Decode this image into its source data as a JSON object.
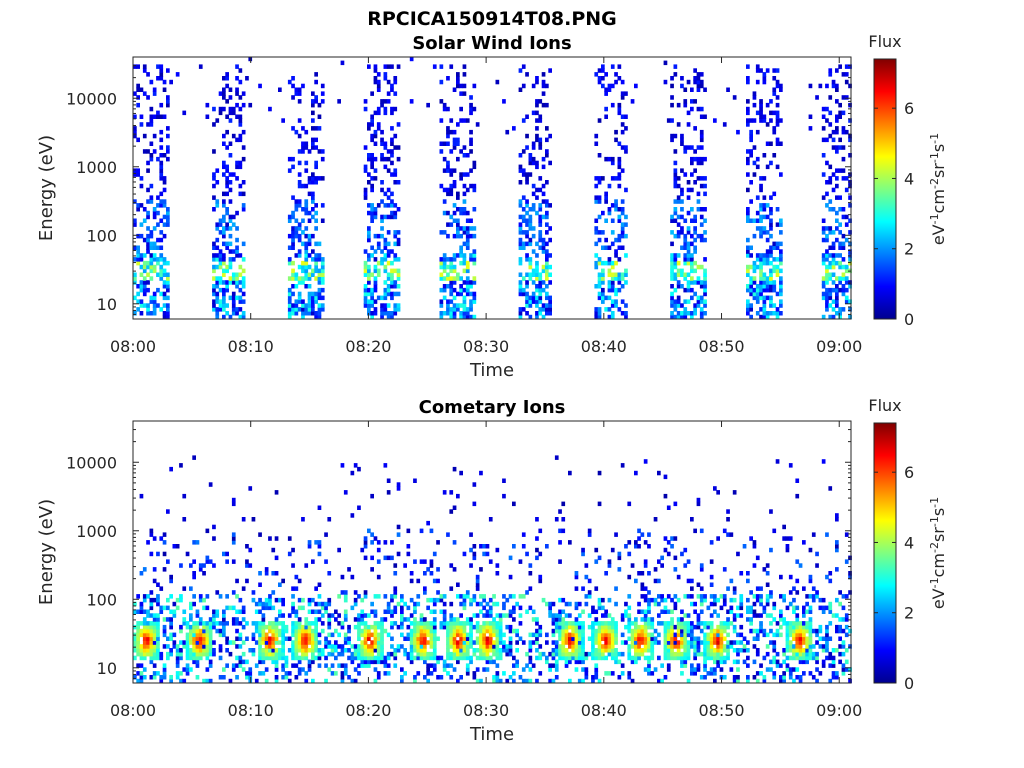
{
  "figure": {
    "title": "RPCICA150914T08.PNG"
  },
  "chart_data": [
    {
      "type": "heatmap",
      "title": "Solar Wind Ions",
      "xlabel": "Time",
      "ylabel": "Energy (eV)",
      "x_tick_labels": [
        "08:00",
        "08:10",
        "08:20",
        "08:30",
        "08:40",
        "08:50",
        "09:00"
      ],
      "xlim": [
        "08:00",
        "09:01"
      ],
      "y_scale": "log",
      "y_tick_values": [
        10,
        100,
        1000,
        10000
      ],
      "y_tick_labels": [
        "10",
        "100",
        "1000",
        "10000"
      ],
      "ylim": [
        6,
        40000
      ],
      "colorbar": {
        "label": "Flux",
        "unit_label": "eV-1cm-2sr-1s-1",
        "range": [
          0,
          7.4
        ],
        "tick_values": [
          0,
          2,
          4,
          6
        ],
        "tick_labels": [
          "0",
          "2",
          "4",
          "6"
        ],
        "colormap": "jet"
      },
      "bursts_minutes": [
        [
          0,
          3
        ],
        [
          6.5,
          9.5
        ],
        [
          13,
          16
        ],
        [
          19.5,
          22.5
        ],
        [
          26,
          29
        ],
        [
          32.5,
          35.5
        ],
        [
          39,
          42
        ],
        [
          45.5,
          48.5
        ],
        [
          52,
          55
        ],
        [
          58.5,
          61
        ]
      ],
      "peak_energy_ev": 30,
      "peak_flux": 4.5
    },
    {
      "type": "heatmap",
      "title": "Cometary Ions",
      "xlabel": "Time",
      "ylabel": "Energy (eV)",
      "x_tick_labels": [
        "08:00",
        "08:10",
        "08:20",
        "08:30",
        "08:40",
        "08:50",
        "09:00"
      ],
      "xlim": [
        "08:00",
        "09:01"
      ],
      "y_scale": "log",
      "y_tick_values": [
        10,
        100,
        1000,
        10000
      ],
      "y_tick_labels": [
        "10",
        "100",
        "1000",
        "10000"
      ],
      "ylim": [
        6,
        40000
      ],
      "colorbar": {
        "label": "Flux",
        "unit_label": "eV-1cm-2sr-1s-1",
        "range": [
          0,
          7.4
        ],
        "tick_values": [
          0,
          2,
          4,
          6
        ],
        "tick_labels": [
          "0",
          "2",
          "4",
          "6"
        ],
        "colormap": "jet"
      },
      "hotspot_minutes": [
        1.0,
        5.5,
        11.5,
        14.5,
        20.0,
        24.5,
        27.5,
        30.0,
        37.0,
        40.0,
        43.0,
        46.0,
        49.5,
        56.5
      ],
      "peak_energy_ev": 25,
      "peak_flux": 6.8
    }
  ]
}
